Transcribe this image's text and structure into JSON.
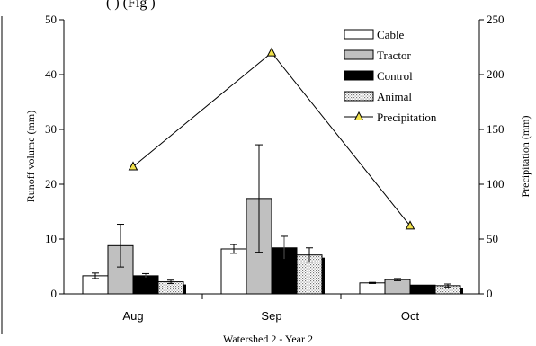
{
  "top_fragment": "(          ) (Fig      )",
  "chart_data": {
    "type": "bar",
    "title": "",
    "xlabel": "Watershed 2 - Year 2",
    "ylabel": "Runoff volume (mm)",
    "y2label": "Precipitation (mm)",
    "ylim": [
      0,
      50
    ],
    "y2lim": [
      0,
      250
    ],
    "yticks": [
      "0",
      "10",
      "20",
      "30",
      "40",
      "50"
    ],
    "y2ticks": [
      "0",
      "50",
      "100",
      "150",
      "200",
      "250"
    ],
    "categories": [
      "Aug",
      "Sep",
      "Oct"
    ],
    "series": [
      {
        "name": "Cable",
        "values": [
          3.3,
          8.2,
          2.0
        ],
        "errors": [
          0.5,
          0.8,
          0.1
        ],
        "fill": "#ffffff"
      },
      {
        "name": "Tractor",
        "values": [
          8.8,
          17.4,
          2.6
        ],
        "errors": [
          3.9,
          9.8,
          0.2
        ],
        "fill": "#c0c0c0"
      },
      {
        "name": "Control",
        "values": [
          3.3,
          8.4,
          1.6
        ],
        "errors": [
          0.4,
          2.1,
          0.0
        ],
        "fill": "#000000"
      },
      {
        "name": "Animal",
        "values": [
          2.2,
          7.1,
          1.5
        ],
        "errors": [
          0.3,
          1.3,
          0.3
        ],
        "fill": "dotted"
      }
    ],
    "line_series": {
      "name": "Precipitation",
      "axis": "right",
      "values": [
        116,
        220,
        62
      ],
      "marker_color": "#f2e24a"
    },
    "legend": "top-right",
    "grid": false
  }
}
